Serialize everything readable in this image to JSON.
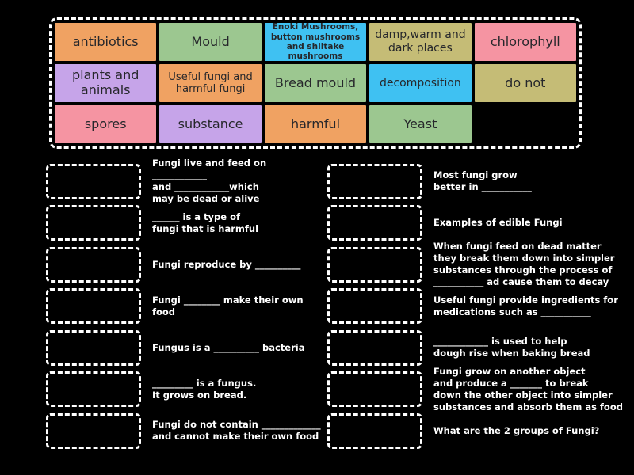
{
  "colors": {
    "background": "#000000",
    "tile_text": "#26272b",
    "question_text": "#ffffff",
    "dashed_border": "#ffffff",
    "orange": "#f0a262",
    "green": "#9cc790",
    "blue": "#3fc1f2",
    "pink": "#f594a2",
    "purple": "#c6a4e9",
    "khaki": "#c5bc76"
  },
  "bank": {
    "tiles": [
      {
        "label": "antibiotics",
        "color": "#f0a262"
      },
      {
        "label": "Mould",
        "color": "#9cc790"
      },
      {
        "label": "Enoki Mushrooms, button mushrooms and shiitake mushrooms",
        "color": "#3fc1f2"
      },
      {
        "label": "damp,warm and dark places",
        "color": "#c5bc76"
      },
      {
        "label": "chlorophyll",
        "color": "#f594a2"
      },
      {
        "label": "plants and animals",
        "color": "#c6a4e9"
      },
      {
        "label": "Useful fungi and harmful fungi",
        "color": "#f0a262"
      },
      {
        "label": "Bread mould",
        "color": "#9cc790"
      },
      {
        "label": "decomposition",
        "color": "#3fc1f2"
      },
      {
        "label": "do not",
        "color": "#c5bc76"
      },
      {
        "label": "spores",
        "color": "#f594a2"
      },
      {
        "label": "substance",
        "color": "#c6a4e9"
      },
      {
        "label": "harmful",
        "color": "#f0a262"
      },
      {
        "label": "Yeast",
        "color": "#9cc790"
      }
    ]
  },
  "questions": {
    "left": [
      {
        "text": "Fungi live and feed on ____________\nand ____________which\nmay be dead or alive"
      },
      {
        "text": "______ is a type of\nfungi that is harmful"
      },
      {
        "text": "Fungi reproduce by __________"
      },
      {
        "text": "Fungi ________ make their own food"
      },
      {
        "text": "Fungus is a __________ bacteria"
      },
      {
        "text": "_________ is a fungus.\nIt grows on bread."
      },
      {
        "text": "Fungi do not contain _____________\nand cannot make their own food"
      }
    ],
    "right": [
      {
        "text": "Most fungi grow\nbetter in ___________"
      },
      {
        "text": "Examples of edible Fungi"
      },
      {
        "text": "When fungi feed on dead matter\nthey break them down into simpler\nsubstances through the process of\n___________ ad cause them to decay"
      },
      {
        "text": "Useful fungi provide ingredients for\nmedications such as ___________"
      },
      {
        "text": "____________ is used to help\ndough rise when baking bread"
      },
      {
        "text": "Fungi grow on another object\nand produce a _______ to break\ndown the other object into simpler\nsubstances and absorb them as food"
      },
      {
        "text": "What are the 2 groups of Fungi?"
      }
    ]
  }
}
